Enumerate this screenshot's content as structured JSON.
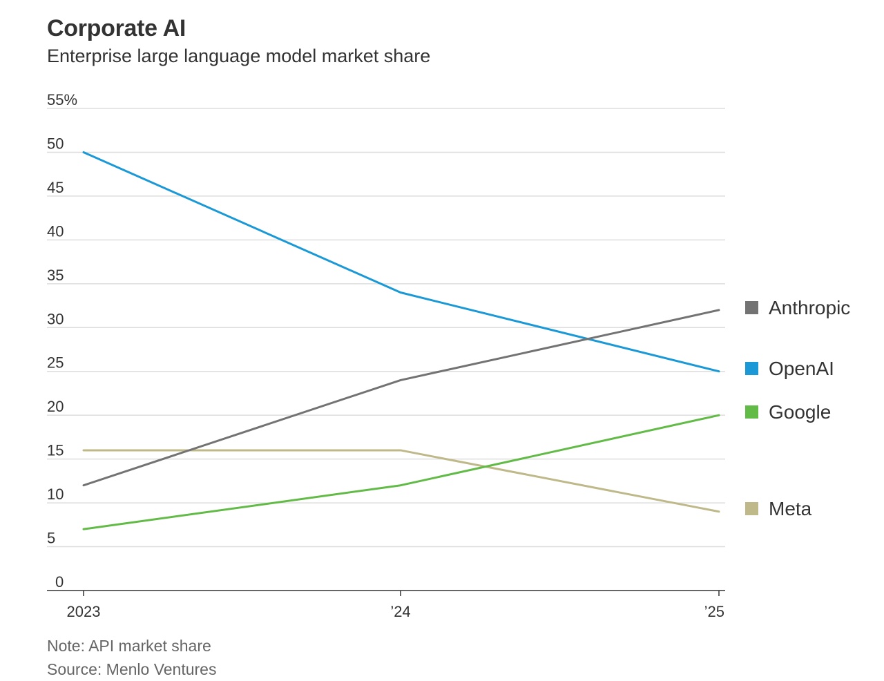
{
  "header": {
    "title": "Corporate AI",
    "subtitle": "Enterprise large language model market share"
  },
  "footer": {
    "note": "Note: API market share",
    "source": "Source: Menlo Ventures"
  },
  "chart_data": {
    "type": "line",
    "title": "Corporate AI",
    "subtitle": "Enterprise large language model market share",
    "xlabel": "",
    "ylabel": "",
    "categories": [
      "2023",
      "’24",
      "’25"
    ],
    "y_ticks": [
      "55%",
      "50",
      "45",
      "40",
      "35",
      "30",
      "25",
      "20",
      "15",
      "10",
      "5",
      "0"
    ],
    "ylim": [
      0,
      55
    ],
    "grid": true,
    "legend_placement": "right",
    "series": [
      {
        "name": "Anthropic",
        "color": "#737373",
        "values": [
          12,
          24,
          32
        ]
      },
      {
        "name": "OpenAI",
        "color": "#1a99d6",
        "values": [
          50,
          34,
          25
        ]
      },
      {
        "name": "Google",
        "color": "#61bb46",
        "values": [
          7,
          12,
          20
        ]
      },
      {
        "name": "Meta",
        "color": "#bfb98a",
        "values": [
          16,
          16,
          9
        ]
      }
    ]
  }
}
